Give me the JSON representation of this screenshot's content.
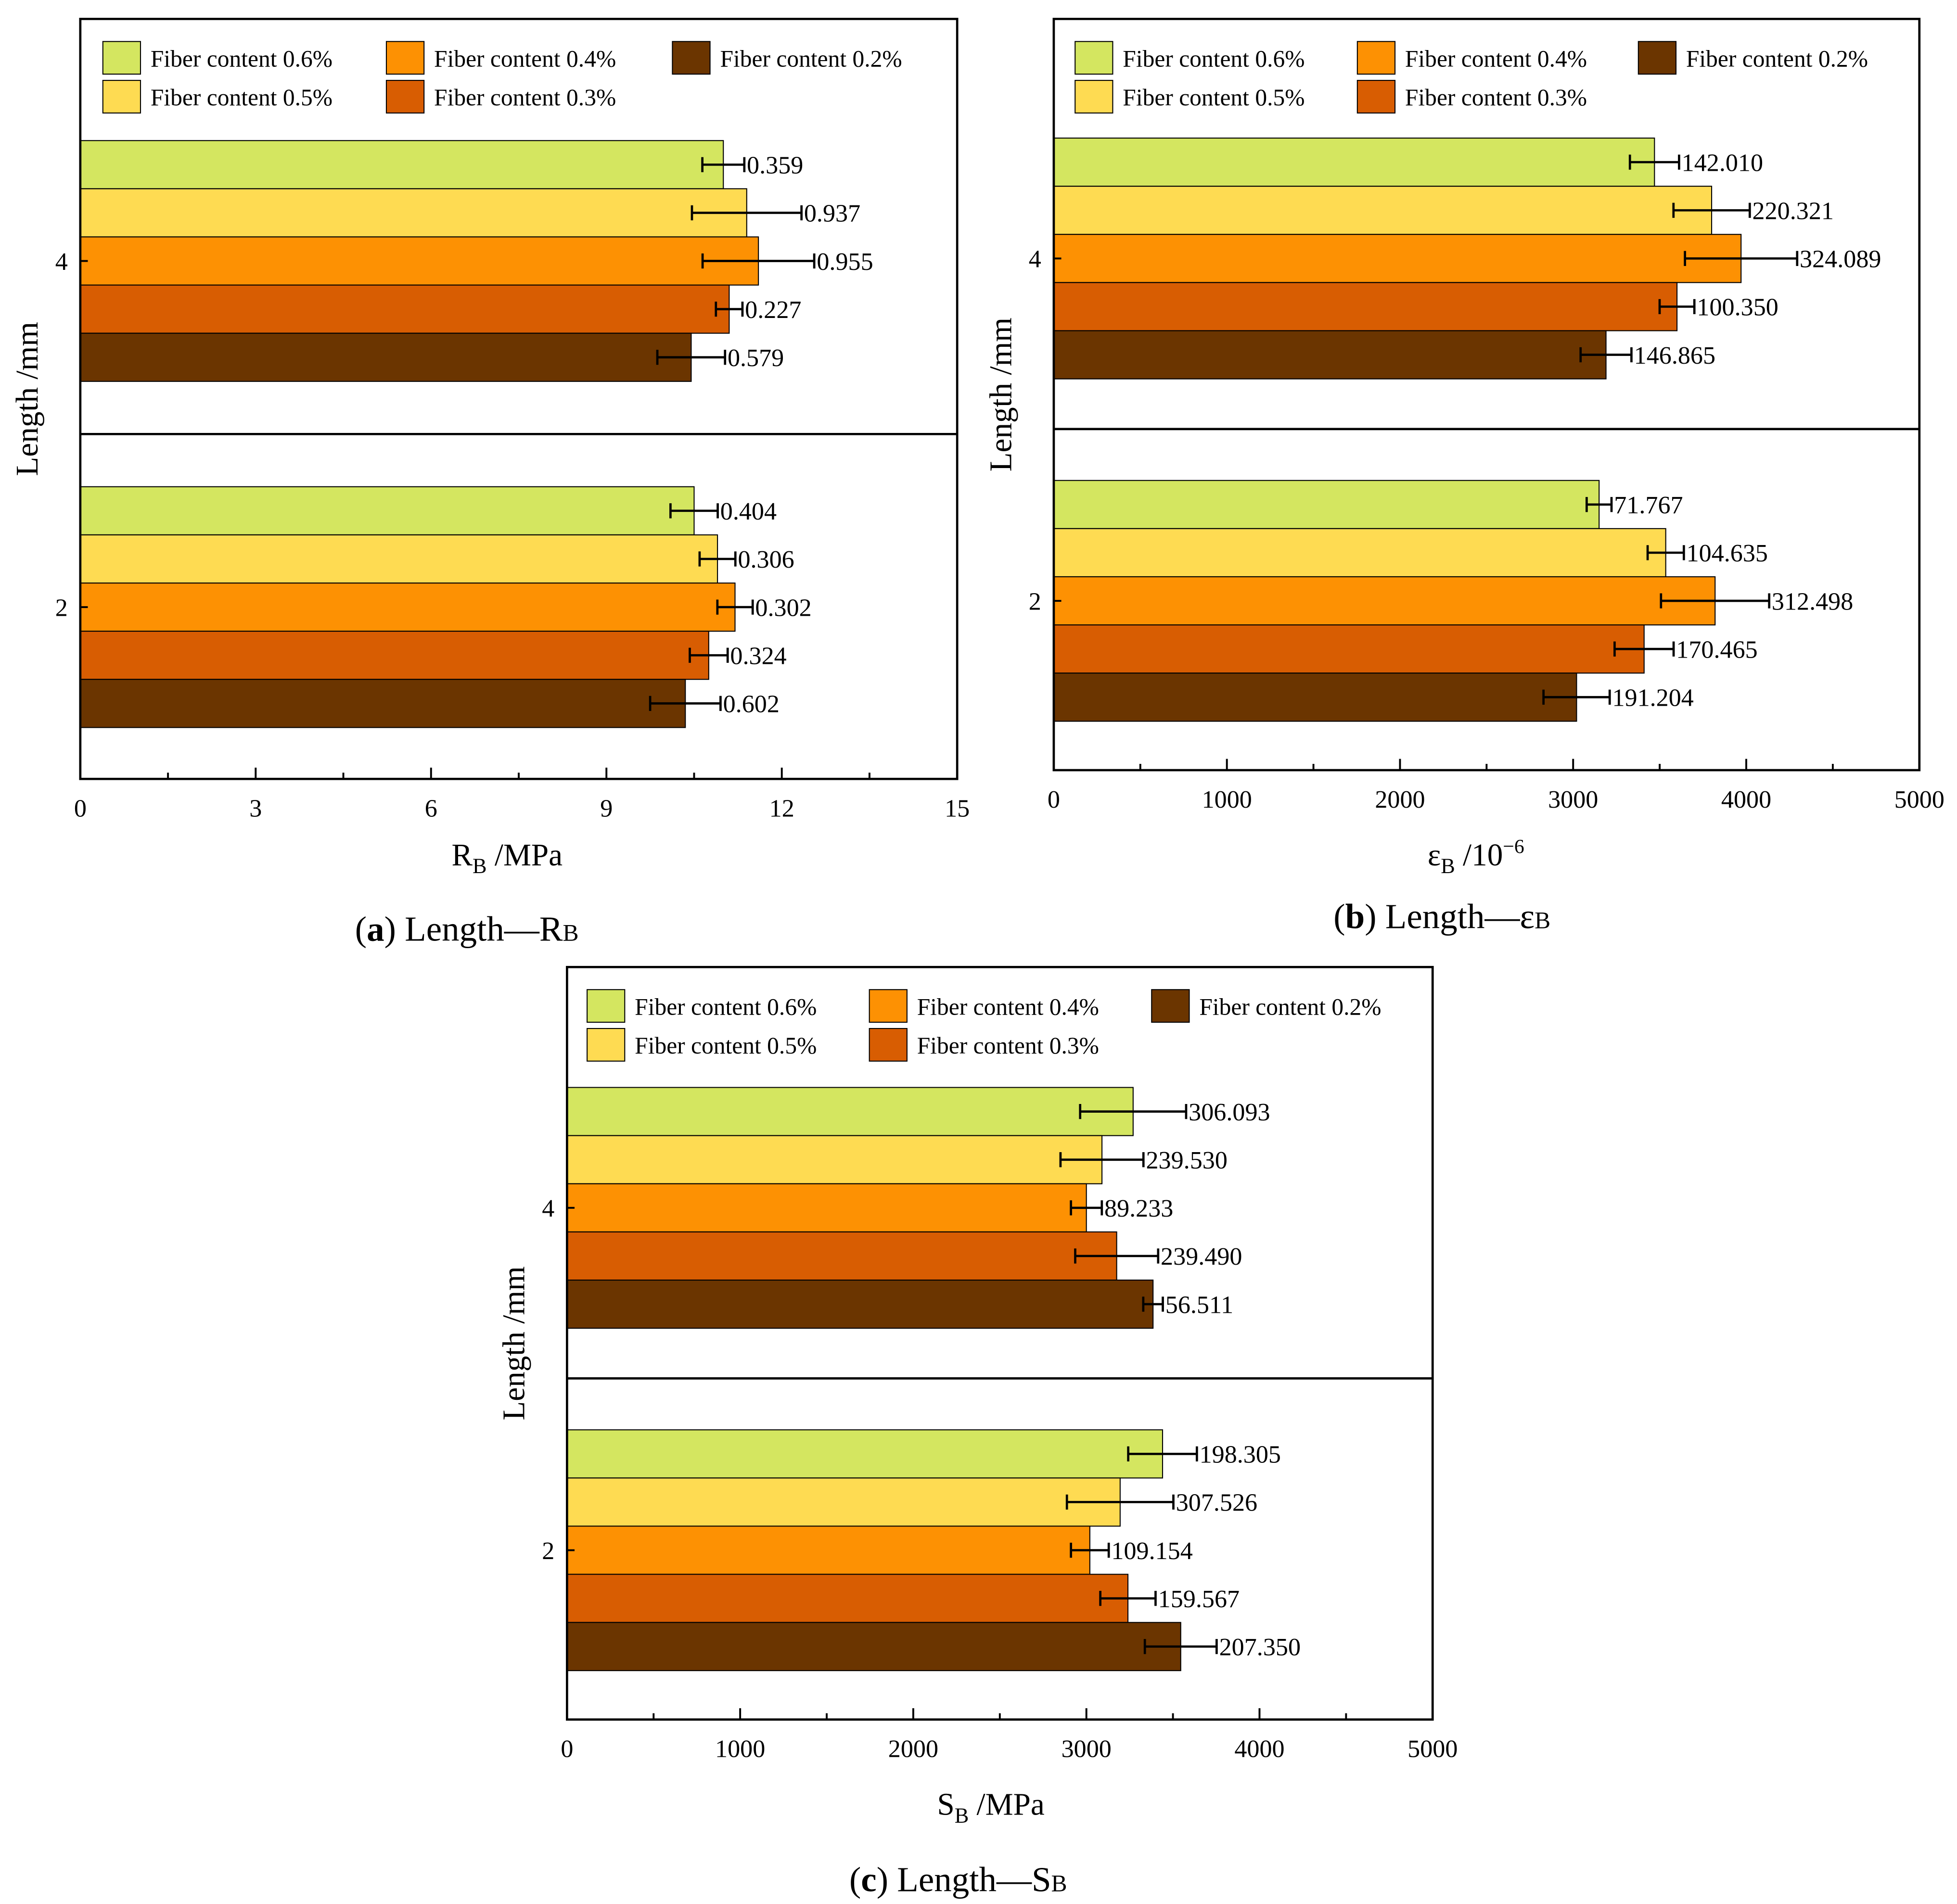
{
  "legend_labels": [
    "Fiber content 0.6%",
    "Fiber content 0.5%",
    "Fiber content 0.4%",
    "Fiber content 0.3%",
    "Fiber content 0.2%"
  ],
  "series_colors": [
    "#d4e660",
    "#fedb52",
    "#fd9103",
    "#d85d02",
    "#6b3500"
  ],
  "chart_data": [
    {
      "type": "bar",
      "orientation": "horizontal",
      "caption_letter": "a",
      "caption_text": ") Length—R",
      "caption_sub": "B",
      "xlabel_main": "R",
      "xlabel_sub": "B",
      "xlabel_unit": " /MPa",
      "ylabel": "Length /mm",
      "xlim": [
        0,
        15
      ],
      "xticks": [
        "0",
        "3",
        "6",
        "9",
        "12",
        "15"
      ],
      "categories": [
        "4",
        "2"
      ],
      "series": [
        {
          "name": "Fiber content 0.6%",
          "values": [
            11.0,
            10.5
          ],
          "errors": [
            "0.359",
            "0.404"
          ]
        },
        {
          "name": "Fiber content 0.5%",
          "values": [
            11.4,
            10.9
          ],
          "errors": [
            "0.937",
            "0.306"
          ]
        },
        {
          "name": "Fiber content 0.4%",
          "values": [
            11.6,
            11.2
          ],
          "errors": [
            "0.955",
            "0.302"
          ]
        },
        {
          "name": "Fiber content 0.3%",
          "values": [
            11.1,
            10.75
          ],
          "errors": [
            "0.227",
            "0.324"
          ]
        },
        {
          "name": "Fiber content 0.2%",
          "values": [
            10.45,
            10.35
          ],
          "errors": [
            "0.579",
            "0.602"
          ]
        }
      ]
    },
    {
      "type": "bar",
      "orientation": "horizontal",
      "caption_letter": "b",
      "caption_text": ") Length—ε",
      "caption_sub": "B",
      "xlabel_main": "ε",
      "xlabel_sub": "B",
      "xlabel_unit": " /10",
      "xlabel_sup": "−6",
      "ylabel": "Length /mm",
      "xlim": [
        0,
        5000
      ],
      "xticks": [
        "0",
        "1000",
        "2000",
        "3000",
        "4000",
        "5000"
      ],
      "categories": [
        "4",
        "2"
      ],
      "series": [
        {
          "name": "Fiber content 0.6%",
          "values": [
            3470,
            3150
          ],
          "errors": [
            "142.010",
            "71.767"
          ]
        },
        {
          "name": "Fiber content 0.5%",
          "values": [
            3800,
            3535
          ],
          "errors": [
            "220.321",
            "104.635"
          ]
        },
        {
          "name": "Fiber content 0.4%",
          "values": [
            3970,
            3820
          ],
          "errors": [
            "324.089",
            "312.498"
          ]
        },
        {
          "name": "Fiber content 0.3%",
          "values": [
            3600,
            3410
          ],
          "errors": [
            "100.350",
            "170.465"
          ]
        },
        {
          "name": "Fiber content 0.2%",
          "values": [
            3190,
            3020
          ],
          "errors": [
            "146.865",
            "191.204"
          ]
        }
      ]
    },
    {
      "type": "bar",
      "orientation": "horizontal",
      "caption_letter": "c",
      "caption_text": ") Length—S",
      "caption_sub": "B",
      "xlabel_main": "S",
      "xlabel_sub": "B",
      "xlabel_unit": " /MPa",
      "ylabel": "Length /mm",
      "xlim": [
        0,
        5000
      ],
      "xticks": [
        "0",
        "1000",
        "2000",
        "3000",
        "4000",
        "5000"
      ],
      "categories": [
        "4",
        "2"
      ],
      "series": [
        {
          "name": "Fiber content 0.6%",
          "values": [
            3270,
            3440
          ],
          "errors": [
            "306.093",
            "198.305"
          ]
        },
        {
          "name": "Fiber content 0.5%",
          "values": [
            3090,
            3195
          ],
          "errors": [
            "239.530",
            "307.526"
          ]
        },
        {
          "name": "Fiber content 0.4%",
          "values": [
            3000,
            3020
          ],
          "errors": [
            "89.233",
            "109.154"
          ]
        },
        {
          "name": "Fiber content 0.3%",
          "values": [
            3175,
            3240
          ],
          "errors": [
            "239.490",
            "159.567"
          ]
        },
        {
          "name": "Fiber content 0.2%",
          "values": [
            3385,
            3545
          ],
          "errors": [
            "56.511",
            "207.350"
          ]
        }
      ]
    }
  ]
}
